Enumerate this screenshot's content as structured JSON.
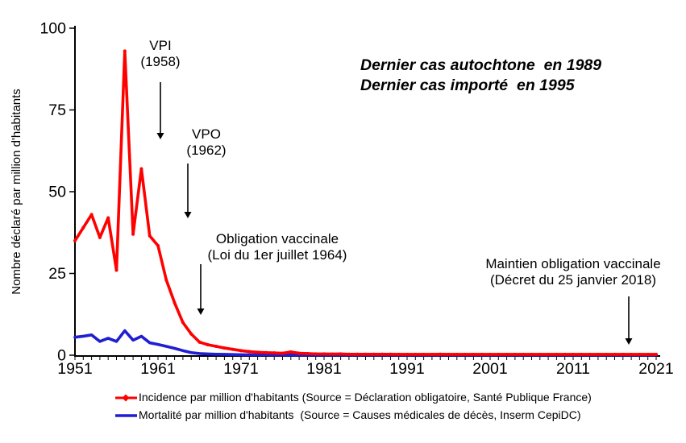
{
  "chart_data": {
    "type": "line",
    "title": "",
    "xlabel": "",
    "ylabel": "Nombre déclaré par million d'habitants",
    "ylim": [
      0,
      100
    ],
    "xlim": [
      1951,
      2021
    ],
    "year_start": 1951,
    "year_end": 2021,
    "x_ticks": [
      1951,
      1961,
      1971,
      1981,
      1991,
      2001,
      2011,
      2021
    ],
    "y_ticks": [
      0,
      25,
      50,
      75,
      100
    ],
    "grid": "off",
    "legend_position": "bottom",
    "series": [
      {
        "id": "incidence",
        "name": "Incidence par million d'habitants",
        "color": "#ff0000",
        "marker": true,
        "values": [
          35,
          39,
          43,
          36,
          42,
          26,
          93,
          37,
          57,
          36.5,
          33.5,
          23,
          16,
          10,
          6.5,
          4,
          3.2,
          2.7,
          2.2,
          1.8,
          1.4,
          1.1,
          0.9,
          0.8,
          0.7,
          0.6,
          1.0,
          0.6,
          0.5,
          0.4,
          0.4,
          0.35,
          0.4,
          0.3,
          0.3,
          0.3,
          0.3,
          0.3,
          0.3,
          0.25,
          0.25,
          0.25,
          0.25,
          0.25,
          0.3,
          0.25,
          0.25,
          0.25,
          0.25,
          0.25,
          0.25,
          0.25,
          0.25,
          0.25,
          0.25,
          0.25,
          0.25,
          0.25,
          0.25,
          0.25,
          0.25,
          0.25,
          0.25,
          0.25,
          0.25,
          0.25,
          0.25,
          0.25,
          0.25,
          0.25,
          0.25
        ]
      },
      {
        "id": "mortalite",
        "name": "Mortalité par million d'habitants",
        "color": "#1e1ed2",
        "marker": false,
        "values": [
          5.5,
          5.8,
          6.2,
          4.2,
          5.2,
          4.2,
          7.5,
          4.6,
          5.8,
          3.8,
          3.3,
          2.7,
          2.1,
          1.4,
          0.8,
          0.5,
          0.4,
          0.3,
          0.25,
          0.2,
          0.15,
          0.1,
          0.1,
          0.1,
          0.05,
          0.05,
          0.05,
          0.05,
          0.05,
          0.05,
          0.05,
          0.05,
          0.05,
          0.05,
          0.05,
          0.05,
          0.05,
          0.05,
          0.05,
          0.05,
          0.05,
          0.05,
          0.05,
          0.05,
          0.05,
          0.05,
          0.05,
          0.05,
          0.05,
          0.05,
          0.05,
          0.05,
          0.05,
          0.05,
          0.05,
          0.05,
          0.05,
          0.05,
          0.05,
          0.05,
          0.05,
          0.05,
          0.05,
          0.05,
          0.05,
          0.05,
          0.05,
          0.05,
          0.05,
          0.05,
          0.05
        ]
      }
    ],
    "annotations": [
      {
        "id": "vpi",
        "lines": [
          "VPI",
          "(1958)"
        ],
        "color": "#000000"
      },
      {
        "id": "vpo",
        "lines": [
          "VPO",
          "(1962)"
        ],
        "color": "#000000"
      },
      {
        "id": "obligation",
        "lines": [
          "Obligation vaccinale",
          "(Loi du 1er juillet 1964)"
        ],
        "color": "#000000"
      },
      {
        "id": "maintien",
        "lines": [
          "Maintien obligation vaccinale",
          "(Décret du 25 janvier 2018)"
        ],
        "color": "#000000"
      },
      {
        "id": "dernier",
        "lines": [
          "Dernier cas autochtone  en 1989",
          "Dernier cas importé  en 1995"
        ],
        "color": "#ff0000"
      }
    ],
    "legend": [
      {
        "label": "Incidence par million d'habitants (Source = Déclaration obligatoire, Santé Publique France)",
        "color": "#ff0000"
      },
      {
        "label": "Mortalité par million d'habitants  (Source = Causes médicales de décès, Inserm CepiDC)",
        "color": "#1e1ed2"
      }
    ]
  }
}
